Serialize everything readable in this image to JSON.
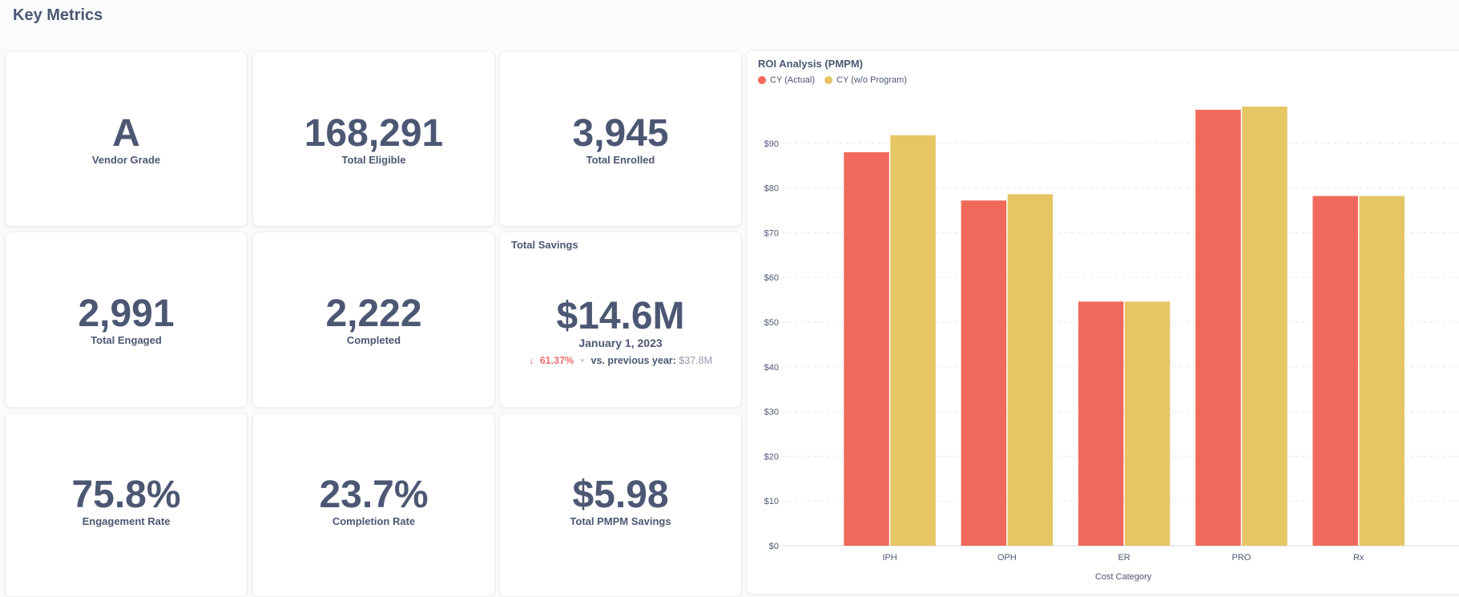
{
  "header": {
    "title": "Key Metrics"
  },
  "metrics": {
    "vendor_grade": {
      "value": "A",
      "label": "Vendor Grade"
    },
    "total_eligible": {
      "value": "168,291",
      "label": "Total Eligible"
    },
    "total_enrolled": {
      "value": "3,945",
      "label": "Total Enrolled"
    },
    "total_engaged": {
      "value": "2,991",
      "label": "Total Engaged"
    },
    "completed": {
      "value": "2,222",
      "label": "Completed"
    },
    "total_savings": {
      "title": "Total Savings",
      "value": "$14.6M",
      "date": "January 1, 2023",
      "arrow": "↓",
      "change": "61.37%",
      "separator": "•",
      "compare_label": "vs. previous year:",
      "compare_value": "$37.8M"
    },
    "engagement_rate": {
      "value": "75.8%",
      "label": "Engagement Rate"
    },
    "completion_rate": {
      "value": "23.7%",
      "label": "Completion Rate"
    },
    "total_pmpm_savings": {
      "value": "$5.98",
      "label": "Total PMPM Savings"
    }
  },
  "colors": {
    "actual": "#f1695a",
    "wo_program": "#e6c565"
  },
  "chart_data": {
    "type": "bar",
    "title": "ROI Analysis (PMPM)",
    "categories": [
      "IPH",
      "OPH",
      "ER",
      "PRO",
      "Rx"
    ],
    "series": [
      {
        "name": "CY (Actual)",
        "values": [
          88,
          77.2,
          54.6,
          97.5,
          78.2
        ]
      },
      {
        "name": "CY (w/o Program)",
        "values": [
          91.8,
          78.6,
          54.6,
          98.2,
          78.2
        ]
      }
    ],
    "xlabel": "Cost Category",
    "ylabel": "",
    "ylim": [
      0,
      100
    ],
    "yticks": [
      "$0",
      "$10",
      "$20",
      "$30",
      "$40",
      "$50",
      "$60",
      "$70",
      "$80",
      "$90"
    ],
    "grid": true,
    "legend": "top-left"
  }
}
